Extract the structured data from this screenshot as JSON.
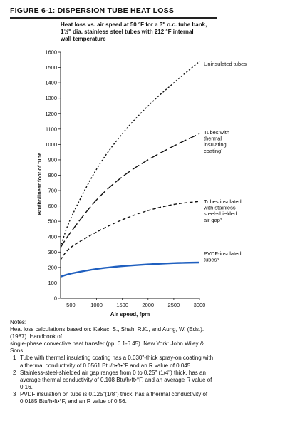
{
  "figure_title": "FIGURE 6-1: DISPERSION TUBE HEAT LOSS",
  "chart_data": {
    "type": "line",
    "title_lines": [
      "Heat loss vs. air speed at 50 °F for a 3\" o.c. tube bank,",
      "1½\" dia. stainless steel tubes with 212 °F internal",
      "wall temperature"
    ],
    "xlabel": "Air speed, fpm",
    "ylabel": "Btu/hr/linear foot of tube",
    "xlim": [
      300,
      3000
    ],
    "ylim": [
      0,
      1600
    ],
    "x_ticks": [
      500,
      1000,
      1500,
      2000,
      2500,
      3000
    ],
    "y_ticks": [
      0,
      100,
      200,
      300,
      400,
      500,
      600,
      700,
      800,
      900,
      1000,
      1100,
      1200,
      1300,
      1400,
      1500,
      1600
    ],
    "grid": false,
    "series": [
      {
        "name_lines": [
          "Uninsulated tubes"
        ],
        "style": "dotted",
        "x": [
          300,
          500,
          1000,
          1500,
          2000,
          2500,
          3000
        ],
        "y": [
          330,
          520,
          840,
          1070,
          1250,
          1400,
          1540
        ]
      },
      {
        "name_lines": [
          "Tubes with",
          "thermal",
          "insulating",
          "coating¹"
        ],
        "style": "long-dash",
        "x": [
          300,
          500,
          1000,
          1500,
          2000,
          2500,
          3000
        ],
        "y": [
          330,
          430,
          640,
          790,
          900,
          990,
          1070
        ]
      },
      {
        "name_lines": [
          "Tubes insulated",
          "with stainless-",
          "steel-shielded",
          "air gap²"
        ],
        "style": "short-dash",
        "x": [
          300,
          500,
          1000,
          1500,
          2000,
          2500,
          3000
        ],
        "y": [
          250,
          330,
          430,
          510,
          570,
          610,
          630
        ]
      },
      {
        "name_lines": [
          "PVDF-insulated",
          "tubes³"
        ],
        "style": "solid",
        "color": "#1f5fbf",
        "x": [
          300,
          500,
          1000,
          1500,
          2000,
          2500,
          3000
        ],
        "y": [
          140,
          160,
          190,
          208,
          220,
          228,
          232
        ]
      }
    ]
  },
  "notes": {
    "heading": "Notes:",
    "source_lines": [
      "Heat loss calculations based on: Kakac, S., Shah, R.K., and Aung, W. (Eds.).",
      "(1987). Handbook of",
      "single-phase convective heat transfer (pp. 6.1-6.45). New York: John Wiley &",
      "Sons."
    ],
    "footnotes": [
      {
        "num": "1",
        "lines": [
          "Tube with thermal insulating coating has a 0.030\"-thick spray-on coating with",
          "a thermal conductivity of 0.0561 Btu/h•ft•°F and an R value of 0.045."
        ]
      },
      {
        "num": "2",
        "lines": [
          "Stainless-steel-shielded air gap ranges from 0 to 0.25\" (1/4\") thick, has an",
          "average thermal conductivity of 0.108 Btu/h•ft•°F, and an average R value of",
          "0.16."
        ]
      },
      {
        "num": "3",
        "lines": [
          "PVDF insulation on tube is 0.125\"(1/8\") thick, has a thermal conductivity of",
          "0.0185 Btu/h•ft•°F, and an R value of 0.56."
        ]
      }
    ]
  }
}
